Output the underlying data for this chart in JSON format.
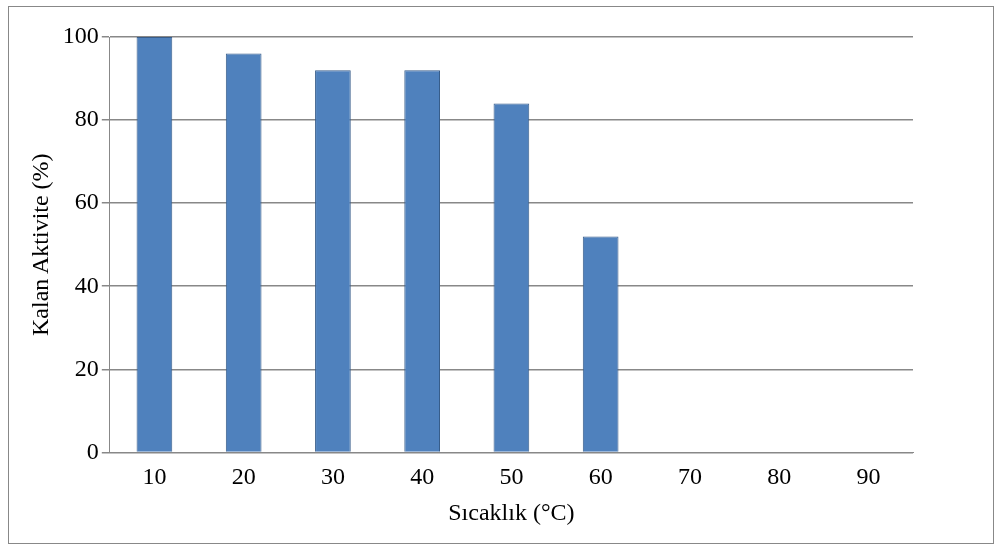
{
  "chart_data": {
    "type": "bar",
    "xlabel": "Sıcaklık (°C)",
    "ylabel": "Kalan Aktivite (%)",
    "categories": [
      "10",
      "20",
      "30",
      "40",
      "50",
      "60",
      "70",
      "80",
      "90"
    ],
    "values": [
      100,
      96,
      92,
      92,
      84,
      52,
      0,
      0,
      0
    ],
    "color": "#4f81bd",
    "ylim": [
      0,
      100
    ],
    "yticks": [
      0,
      20,
      40,
      60,
      80,
      100
    ],
    "grid": "y"
  }
}
